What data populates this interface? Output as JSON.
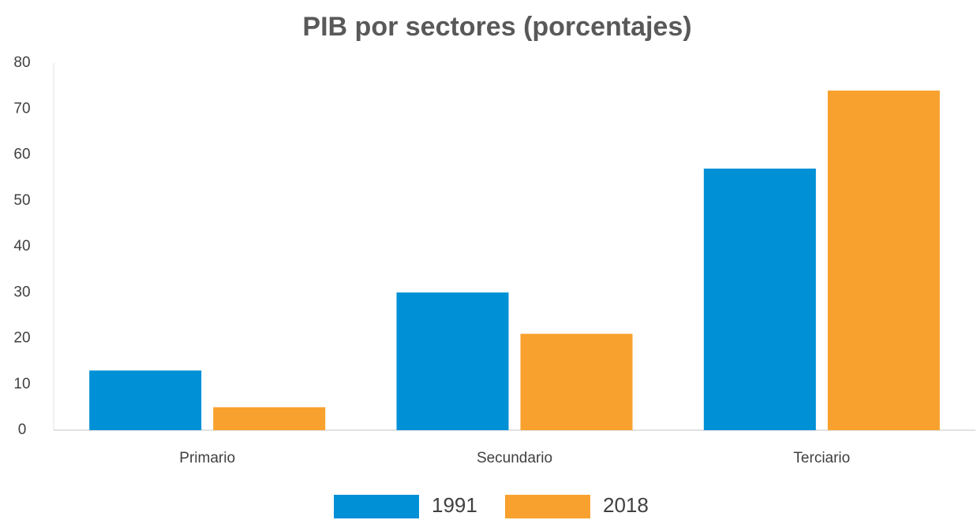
{
  "chart_data": {
    "type": "bar",
    "title": "PIB por sectores (porcentajes)",
    "categories": [
      "Primario",
      "Secundario",
      "Terciario"
    ],
    "series": [
      {
        "name": "1991",
        "color": "#0090d6",
        "values": [
          13,
          30,
          57
        ]
      },
      {
        "name": "2018",
        "color": "#f9a12e",
        "values": [
          5,
          21,
          74
        ]
      }
    ],
    "ylim": [
      0,
      80
    ],
    "yticks": [
      0,
      10,
      20,
      30,
      40,
      50,
      60,
      70,
      80
    ],
    "grid": false,
    "legend": "bottom"
  }
}
